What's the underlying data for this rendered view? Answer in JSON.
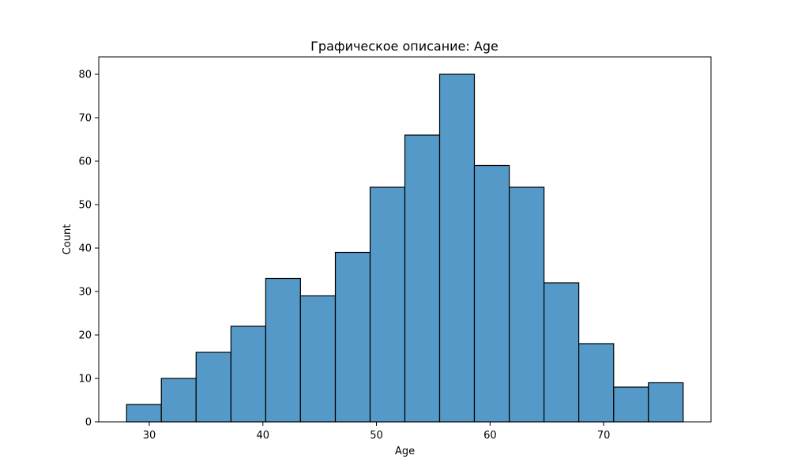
{
  "chart_data": {
    "type": "bar",
    "title": "Графическое описание: Age",
    "xlabel": "Age",
    "ylabel": "Count",
    "bin_start": 28.0,
    "bin_end": 77.0,
    "bins": [
      {
        "x0": 28.0,
        "x1": 31.06,
        "count": 4
      },
      {
        "x0": 31.06,
        "x1": 34.12,
        "count": 10
      },
      {
        "x0": 34.12,
        "x1": 37.19,
        "count": 16
      },
      {
        "x0": 37.19,
        "x1": 40.25,
        "count": 22
      },
      {
        "x0": 40.25,
        "x1": 43.31,
        "count": 33
      },
      {
        "x0": 43.31,
        "x1": 46.38,
        "count": 29
      },
      {
        "x0": 46.38,
        "x1": 49.44,
        "count": 39
      },
      {
        "x0": 49.44,
        "x1": 52.5,
        "count": 54
      },
      {
        "x0": 52.5,
        "x1": 55.56,
        "count": 66
      },
      {
        "x0": 55.56,
        "x1": 58.62,
        "count": 80
      },
      {
        "x0": 58.62,
        "x1": 61.69,
        "count": 59
      },
      {
        "x0": 61.69,
        "x1": 64.75,
        "count": 54
      },
      {
        "x0": 64.75,
        "x1": 67.81,
        "count": 32
      },
      {
        "x0": 67.81,
        "x1": 70.88,
        "count": 18
      },
      {
        "x0": 70.88,
        "x1": 73.94,
        "count": 8
      },
      {
        "x0": 73.94,
        "x1": 77.0,
        "count": 9
      }
    ],
    "xlim": [
      25.55,
      79.45
    ],
    "ylim": [
      0,
      84
    ],
    "xticks": [
      30,
      40,
      50,
      60,
      70
    ],
    "yticks": [
      0,
      10,
      20,
      30,
      40,
      50,
      60,
      70,
      80
    ],
    "grid": false,
    "bar_color": "#5499c7",
    "edge_color": "#000000"
  }
}
